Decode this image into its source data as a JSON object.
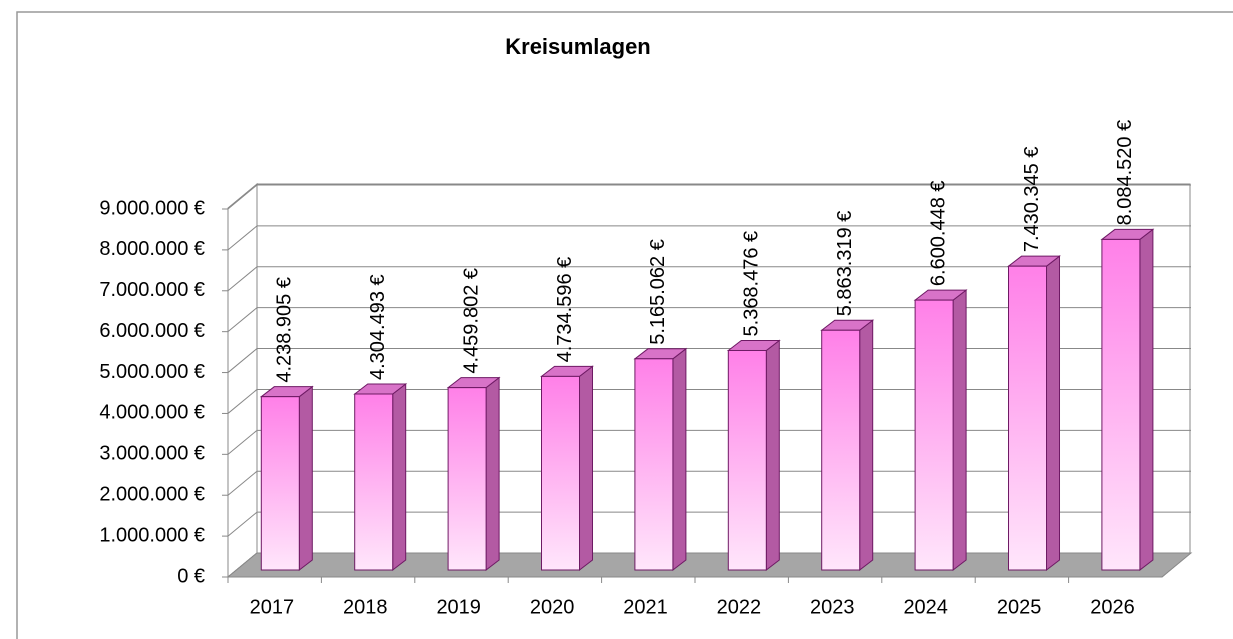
{
  "chart_data": {
    "type": "bar3d",
    "title": "Kreisumlagen",
    "categories": [
      "2017",
      "2018",
      "2019",
      "2020",
      "2021",
      "2022",
      "2023",
      "2024",
      "2025",
      "2026"
    ],
    "values": [
      4238905,
      4304493,
      4459802,
      4734596,
      5165062,
      5368476,
      5863319,
      6600448,
      7430345,
      8084520
    ],
    "value_labels": [
      "4.238.905 €",
      "4.304.493 €",
      "4.459.802 €",
      "4.734.596 €",
      "5.165.062 €",
      "5.368.476 €",
      "5.863.319 €",
      "6.600.448 €",
      "7.430.345 €",
      "8.084.520 €"
    ],
    "color": "#ff80e8",
    "ylim": [
      0,
      9000000
    ],
    "yticks": [
      {
        "value": 0,
        "label": "0 €"
      },
      {
        "value": 1000000,
        "label": "1.000.000 €"
      },
      {
        "value": 2000000,
        "label": "2.000.000 €"
      },
      {
        "value": 3000000,
        "label": "3.000.000 €"
      },
      {
        "value": 4000000,
        "label": "4.000.000 €"
      },
      {
        "value": 5000000,
        "label": "5.000.000 €"
      },
      {
        "value": 6000000,
        "label": "6.000.000 €"
      },
      {
        "value": 7000000,
        "label": "7.000.000 €"
      },
      {
        "value": 8000000,
        "label": "8.000.000 €"
      },
      {
        "value": 9000000,
        "label": "9.000.000 €"
      }
    ],
    "grid": true
  }
}
